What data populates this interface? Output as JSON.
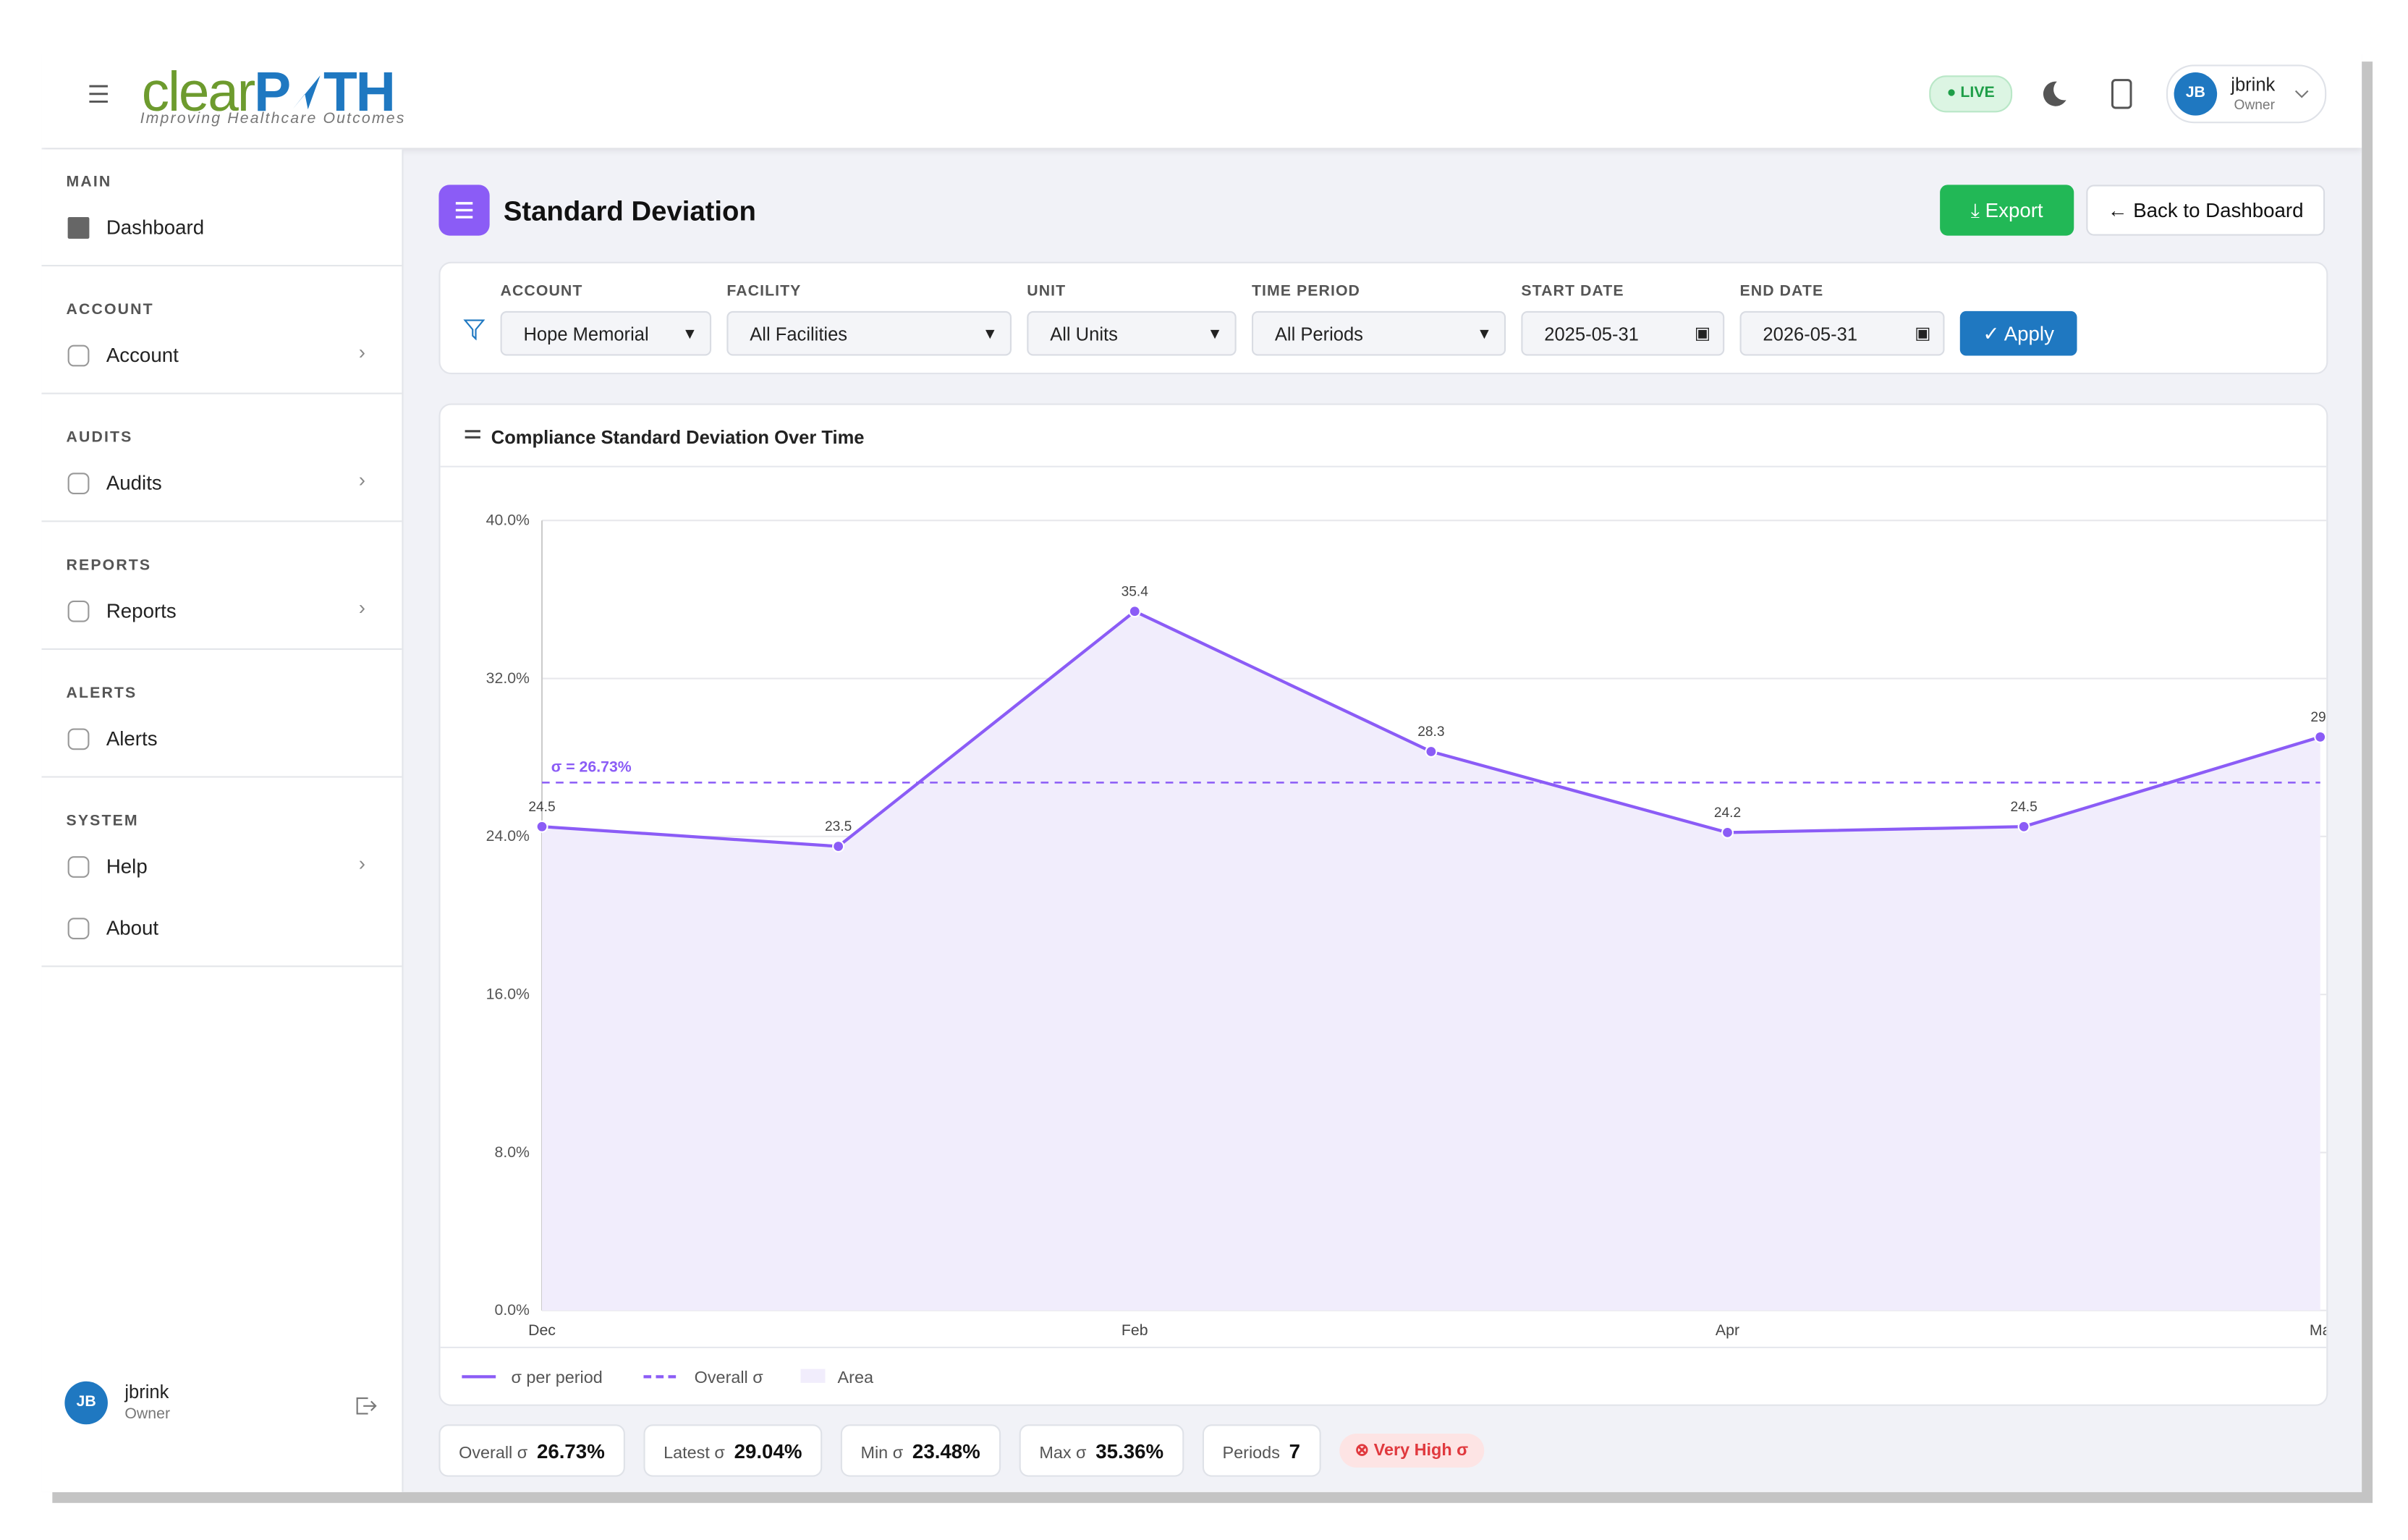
{
  "header": {
    "logo": [
      "clear",
      "P",
      "TH"
    ],
    "tagline": "Improving Healthcare Outcomes",
    "live": "LIVE",
    "user": "jbrink",
    "role": "Owner",
    "initials": "JB"
  },
  "sidebar": {
    "sections": [
      {
        "title": "MAIN",
        "items": [
          "Dashboard"
        ]
      },
      {
        "title": "ACCOUNT",
        "items": [
          "Account"
        ]
      },
      {
        "title": "AUDITS",
        "items": [
          "Audits"
        ]
      },
      {
        "title": "REPORTS",
        "items": [
          "Reports"
        ]
      },
      {
        "title": "ALERTS",
        "items": [
          "Alerts"
        ]
      },
      {
        "title": "SYSTEM",
        "items": [
          "Help",
          "About"
        ]
      }
    ],
    "user": "jbrink",
    "role": "Owner",
    "initials": "JB"
  },
  "page": {
    "title": "Standard Deviation",
    "export": "Export",
    "back": "Back to Dashboard"
  },
  "filters": {
    "fields": [
      {
        "label": "ACCOUNT",
        "value": "Hope Memorial"
      },
      {
        "label": "FACILITY",
        "value": "All Facilities"
      },
      {
        "label": "UNIT",
        "value": "All Units"
      },
      {
        "label": "TIME PERIOD",
        "value": "All Periods"
      },
      {
        "label": "START DATE",
        "value": "2025-05-31"
      },
      {
        "label": "END DATE",
        "value": "2026-05-31"
      }
    ],
    "apply": "Apply"
  },
  "chart_data": {
    "type": "line",
    "title": "Compliance Standard Deviation Over Time",
    "categories": [
      "Dec",
      null,
      "Feb",
      null,
      "Apr",
      null,
      "Ma"
    ],
    "series": [
      {
        "name": "σ per period",
        "color": "#8b5cf6",
        "values": [
          24.5,
          23.5,
          35.4,
          28.3,
          24.2,
          24.5,
          29.04
        ],
        "value_labels": [
          "24.5",
          "23.5",
          "35.4",
          "28.3",
          "24.2",
          "24.5",
          "29."
        ]
      }
    ],
    "reference_line": {
      "name": "Overall σ",
      "value": 26.73,
      "label": "σ = 26.73%",
      "color": "#8b5cf6"
    },
    "area": {
      "name": "Area",
      "color": "#f1edfc"
    },
    "ylim": [
      0,
      40
    ],
    "yticks": [
      {
        "value": 0,
        "label": "0.0%"
      },
      {
        "value": 8,
        "label": "8.0%"
      },
      {
        "value": 16,
        "label": "16.0%"
      },
      {
        "value": 24,
        "label": "24.0%"
      },
      {
        "value": 32,
        "label": "32.0%"
      },
      {
        "value": 40,
        "label": "40.0%"
      }
    ],
    "grid": true
  },
  "stats": [
    {
      "label": "Overall σ",
      "value": "26.73%"
    },
    {
      "label": "Latest σ",
      "value": "29.04%"
    },
    {
      "label": "Min σ",
      "value": "23.48%"
    },
    {
      "label": "Max σ",
      "value": "35.36%"
    },
    {
      "label": "Periods",
      "value": "7"
    }
  ],
  "badge": "Very High σ"
}
